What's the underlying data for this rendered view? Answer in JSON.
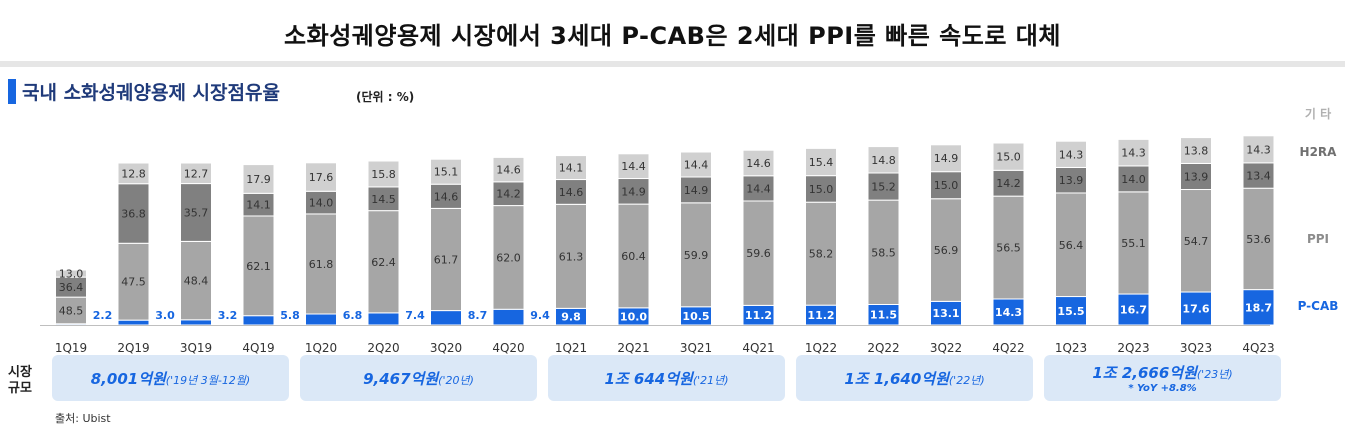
{
  "title": "소화성궤양용제 시장에서 3세대 P-CAB은 2세대 PPI를 빠른 속도로 대체",
  "subtitle": "국내 소화성궤양용제 시장점유율",
  "unit": "(단위 : %)",
  "market_size_label": "시장\n규모",
  "source": "출처: Ubist",
  "colors": {
    "pcab": "#1766e0",
    "ppi": "#a6a6a6",
    "h2ra": "#808080",
    "other": "#d0d0d0"
  },
  "market_boxes": [
    {
      "main": "8,001억원",
      "note": "('19년 3월-12월)",
      "yoy": ""
    },
    {
      "main": "9,467억원",
      "note": "('20년)",
      "yoy": ""
    },
    {
      "main": "1조 644억원",
      "note": "('21년)",
      "yoy": ""
    },
    {
      "main": "1조 1,640억원",
      "note": "('22년)",
      "yoy": ""
    },
    {
      "main": "1조 2,666억원",
      "note": "('23년)",
      "yoy": "* YoY +8.8%"
    }
  ],
  "chart_data": {
    "type": "bar",
    "stacked": true,
    "categories": [
      "1Q19",
      "2Q19",
      "3Q19",
      "4Q19",
      "1Q20",
      "2Q20",
      "3Q20",
      "4Q20",
      "1Q21",
      "2Q21",
      "3Q21",
      "4Q21",
      "1Q22",
      "2Q22",
      "3Q22",
      "4Q22",
      "1Q23",
      "2Q23",
      "3Q23",
      "4Q23"
    ],
    "series": [
      {
        "name": "P-CAB",
        "values": [
          2.2,
          3.0,
          3.2,
          5.8,
          6.8,
          7.4,
          8.7,
          9.4,
          9.8,
          10.0,
          10.5,
          11.2,
          11.2,
          11.5,
          13.1,
          14.3,
          15.5,
          16.7,
          17.6,
          18.7
        ]
      },
      {
        "name": "PPI",
        "values": [
          48.5,
          47.5,
          48.4,
          62.1,
          61.8,
          62.4,
          61.7,
          62.0,
          61.3,
          60.4,
          59.9,
          59.6,
          58.2,
          58.5,
          56.9,
          56.5,
          56.4,
          55.1,
          54.7,
          53.6
        ]
      },
      {
        "name": "H2RA",
        "values": [
          36.4,
          36.8,
          35.7,
          14.1,
          14.0,
          14.5,
          14.6,
          14.2,
          14.6,
          14.9,
          14.9,
          14.4,
          15.0,
          15.2,
          15.0,
          14.2,
          13.9,
          14.0,
          13.9,
          13.4
        ]
      },
      {
        "name": "기 타",
        "values": [
          13.0,
          12.8,
          12.7,
          17.9,
          17.6,
          15.8,
          15.1,
          14.6,
          14.1,
          14.4,
          14.4,
          14.6,
          15.4,
          14.8,
          14.9,
          15.0,
          14.3,
          14.3,
          13.8,
          14.3
        ]
      }
    ],
    "legend_placement": "right"
  }
}
